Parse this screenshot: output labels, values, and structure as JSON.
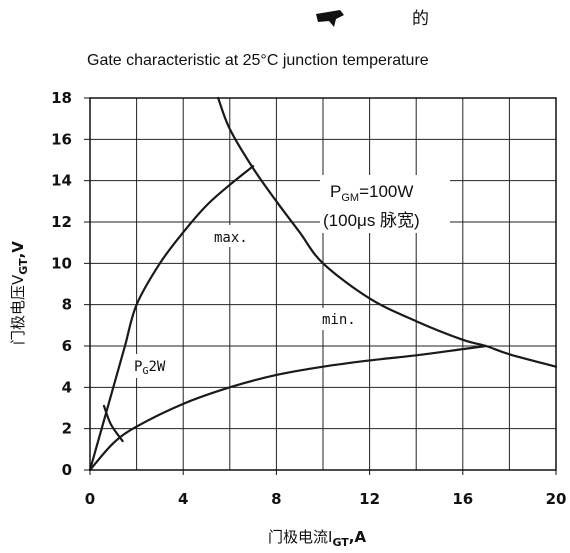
{
  "header_glyph": "的",
  "chart_data": {
    "type": "line",
    "title": "Gate characteristic at 25°C junction temperature",
    "xlabel": "门极电流I",
    "xlabel_sub": "GT",
    "xlabel_unit": ",A",
    "ylabel": "门极电压V",
    "ylabel_sub": "GT",
    "ylabel_unit": ",V",
    "xlim": [
      0,
      20
    ],
    "ylim": [
      0,
      18
    ],
    "x_ticks": [
      0,
      4,
      8,
      12,
      16,
      20
    ],
    "y_ticks": [
      0,
      2,
      4,
      6,
      8,
      10,
      12,
      14,
      16,
      18
    ],
    "grid": true,
    "series": [
      {
        "name": "max.",
        "points": [
          [
            0,
            0
          ],
          [
            0.5,
            2
          ],
          [
            1,
            4
          ],
          [
            1.5,
            6
          ],
          [
            2,
            8
          ],
          [
            3,
            10
          ],
          [
            4,
            11.5
          ],
          [
            5,
            12.8
          ],
          [
            6,
            13.8
          ],
          [
            7,
            14.7
          ]
        ]
      },
      {
        "name": "min.",
        "points": [
          [
            0,
            0
          ],
          [
            1,
            1.3
          ],
          [
            2,
            2.1
          ],
          [
            4,
            3.2
          ],
          [
            6,
            4
          ],
          [
            8,
            4.6
          ],
          [
            10,
            5
          ],
          [
            12,
            5.3
          ],
          [
            14,
            5.55
          ],
          [
            16,
            5.85
          ],
          [
            17,
            6
          ]
        ]
      },
      {
        "name": "PGM=100W",
        "points": [
          [
            5.5,
            18
          ],
          [
            6,
            16.5
          ],
          [
            7,
            14.6
          ],
          [
            8,
            13
          ],
          [
            9,
            11.5
          ],
          [
            10,
            10
          ],
          [
            12,
            8.3
          ],
          [
            14,
            7.2
          ],
          [
            16,
            6.3
          ],
          [
            17,
            6
          ],
          [
            18,
            5.6
          ],
          [
            20,
            5
          ]
        ]
      },
      {
        "name": "PG2W",
        "points": [
          [
            0.6,
            3.1
          ],
          [
            0.9,
            2.2
          ],
          [
            1.4,
            1.4
          ]
        ]
      }
    ],
    "annotations": {
      "pgm_main": "P",
      "pgm_sub": "GM",
      "pgm_value": "=100W",
      "pulse": "(100μs 脉宽)",
      "max_label": "max.",
      "min_label": "min.",
      "pg_main": "P",
      "pg_sub": "G",
      "pg_value": "2W"
    }
  }
}
